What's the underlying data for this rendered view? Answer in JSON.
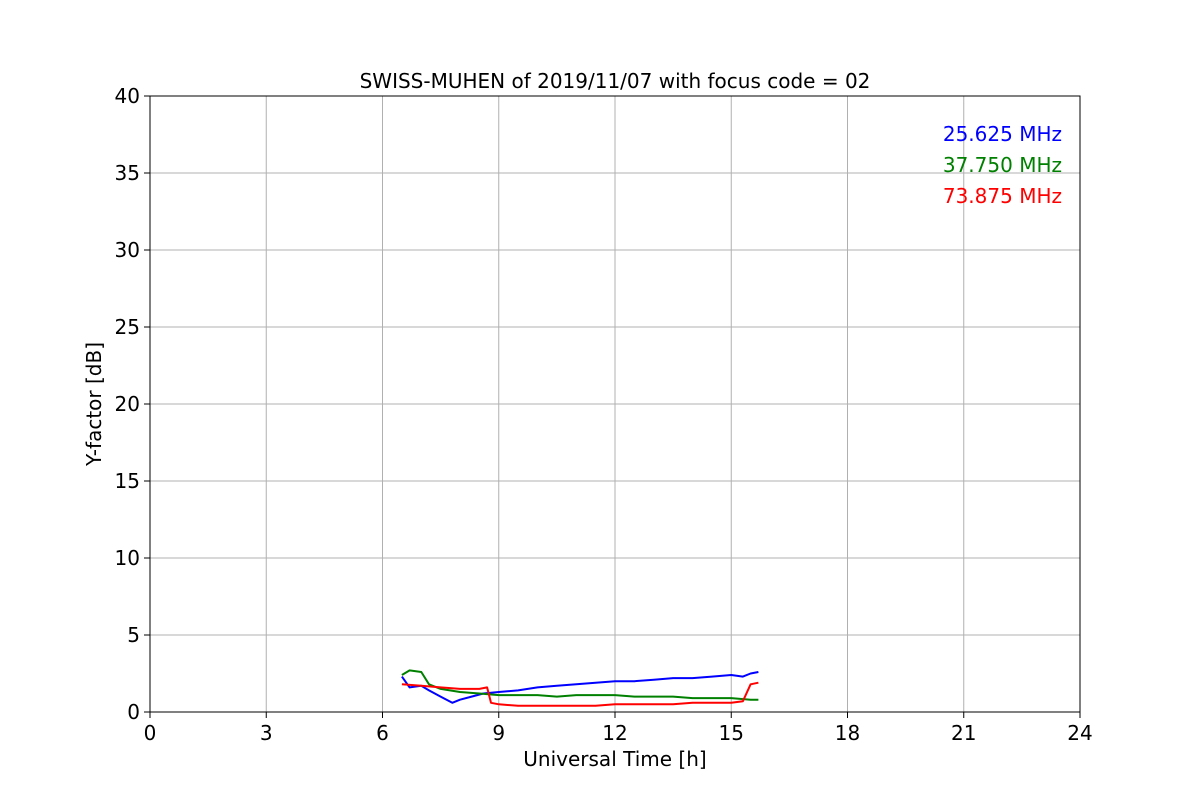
{
  "chart_data": {
    "type": "line",
    "title": "SWISS-MUHEN of 2019/11/07 with focus code = 02",
    "xlabel": "Universal Time [h]",
    "ylabel": "Y-factor [dB]",
    "xlim": [
      0,
      24
    ],
    "ylim": [
      0,
      40
    ],
    "xticks": [
      0,
      3,
      6,
      9,
      12,
      15,
      18,
      21,
      24
    ],
    "yticks": [
      0,
      5,
      10,
      15,
      20,
      25,
      30,
      35,
      40
    ],
    "grid": true,
    "legend_position": "top-right",
    "series": [
      {
        "name": "25.625 MHz",
        "color": "#0000ff",
        "x": [
          6.5,
          6.7,
          7.0,
          7.2,
          7.5,
          7.8,
          8.0,
          8.3,
          8.6,
          9.0,
          9.5,
          10.0,
          10.5,
          11.0,
          11.5,
          12.0,
          12.5,
          13.0,
          13.5,
          14.0,
          14.5,
          15.0,
          15.3,
          15.5,
          15.7
        ],
        "y": [
          2.3,
          1.6,
          1.7,
          1.4,
          1.0,
          0.6,
          0.8,
          1.0,
          1.2,
          1.3,
          1.4,
          1.6,
          1.7,
          1.8,
          1.9,
          2.0,
          2.0,
          2.1,
          2.2,
          2.2,
          2.3,
          2.4,
          2.3,
          2.5,
          2.6
        ]
      },
      {
        "name": "37.750 MHz",
        "color": "#008000",
        "x": [
          6.5,
          6.7,
          7.0,
          7.2,
          7.5,
          8.0,
          8.5,
          9.0,
          9.5,
          10.0,
          10.5,
          11.0,
          11.5,
          12.0,
          12.5,
          13.0,
          13.5,
          14.0,
          14.5,
          15.0,
          15.5,
          15.7
        ],
        "y": [
          2.4,
          2.7,
          2.6,
          1.8,
          1.5,
          1.3,
          1.2,
          1.1,
          1.1,
          1.1,
          1.0,
          1.1,
          1.1,
          1.1,
          1.0,
          1.0,
          1.0,
          0.9,
          0.9,
          0.9,
          0.8,
          0.8
        ]
      },
      {
        "name": "73.875 MHz",
        "color": "#ff0000",
        "x": [
          6.5,
          7.0,
          7.5,
          8.0,
          8.5,
          8.7,
          8.8,
          9.0,
          9.5,
          10.0,
          10.5,
          11.0,
          11.5,
          12.0,
          12.5,
          13.0,
          13.5,
          14.0,
          14.5,
          15.0,
          15.3,
          15.5,
          15.7
        ],
        "y": [
          1.8,
          1.7,
          1.6,
          1.5,
          1.5,
          1.6,
          0.6,
          0.5,
          0.4,
          0.4,
          0.4,
          0.4,
          0.4,
          0.5,
          0.5,
          0.5,
          0.5,
          0.6,
          0.6,
          0.6,
          0.7,
          1.8,
          1.9
        ]
      }
    ]
  }
}
